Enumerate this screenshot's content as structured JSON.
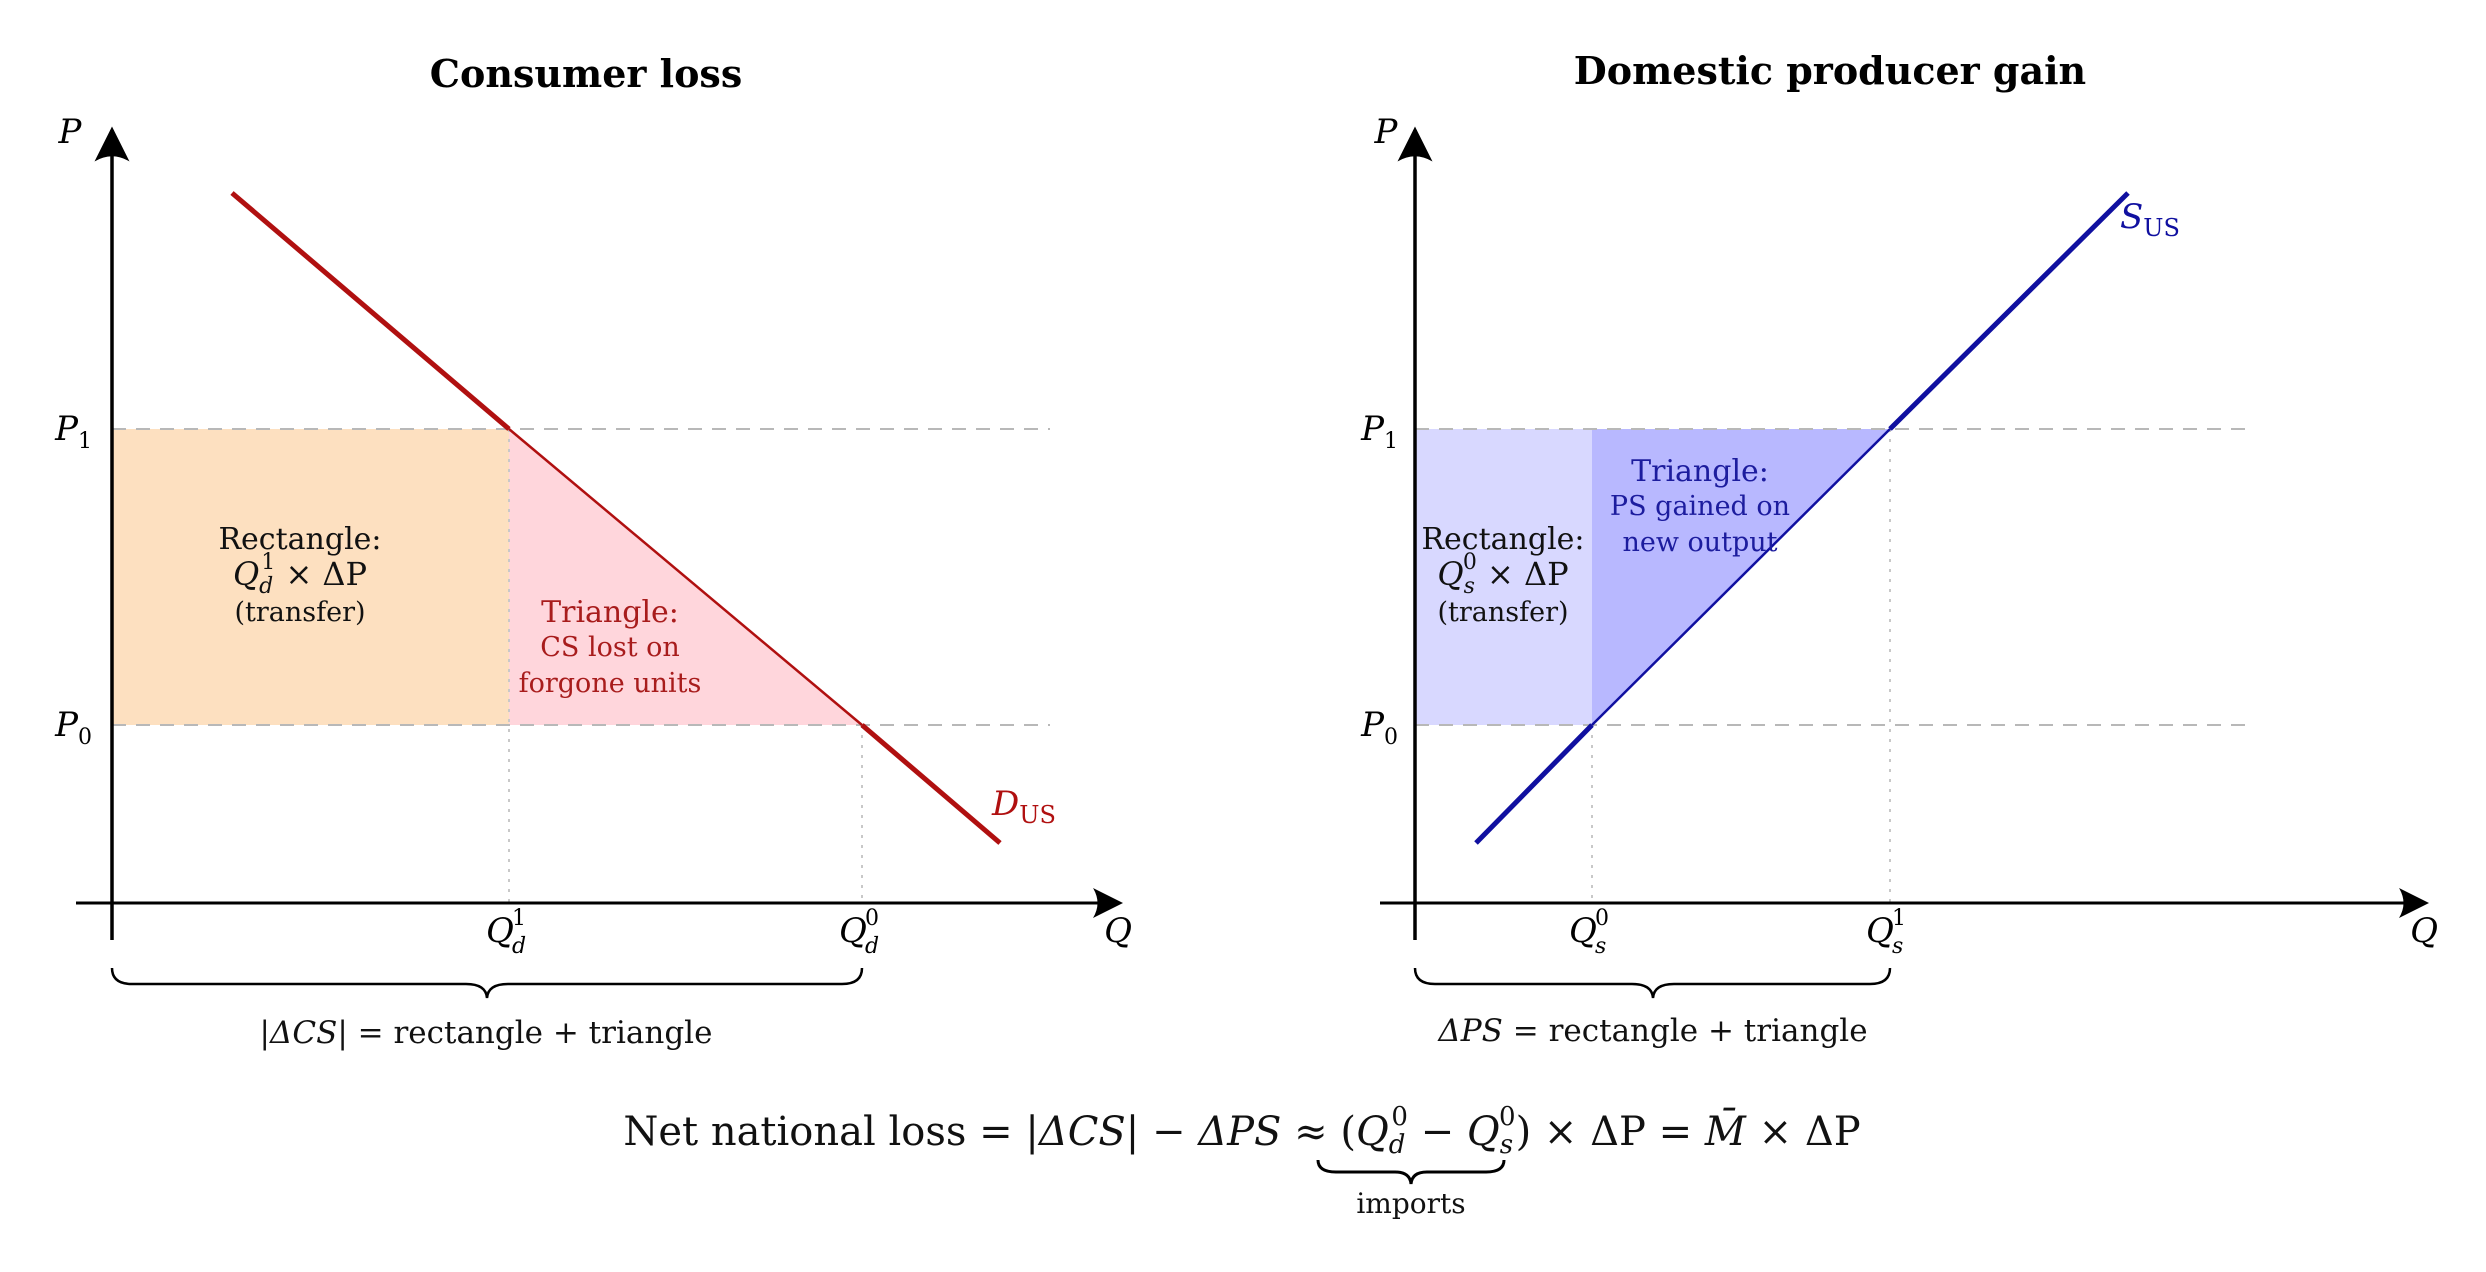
{
  "panels": {
    "left": {
      "title": "Consumer loss",
      "y_axis_label": "P",
      "x_axis_label": "Q",
      "p1_label": "P",
      "p1_sub": "1",
      "p0_label": "P",
      "p0_sub": "0",
      "q1_label": "Q",
      "q1_sub": "d",
      "q1_sup": "1",
      "q0_label": "Q",
      "q0_sub": "d",
      "q0_sup": "0",
      "curve_label": "D",
      "curve_sub": "US",
      "rect_line1": "Rectangle:",
      "rect_line2_a": "Q",
      "rect_line2_sub": "d",
      "rect_line2_sup": "1",
      "rect_line2_b": " × ΔP",
      "rect_line3": "(transfer)",
      "tri_line1": "Triangle:",
      "tri_line2": "CS lost on",
      "tri_line3": "forgone units",
      "brace_text_a": "|ΔCS|",
      "brace_text_b": " = rectangle + triangle"
    },
    "right": {
      "title": "Domestic producer gain",
      "y_axis_label": "P",
      "x_axis_label": "Q",
      "p1_label": "P",
      "p1_sub": "1",
      "p0_label": "P",
      "p0_sub": "0",
      "q0_label": "Q",
      "q0_sub": "s",
      "q0_sup": "0",
      "q1_label": "Q",
      "q1_sub": "s",
      "q1_sup": "1",
      "curve_label": "S",
      "curve_sub": "US",
      "rect_line1": "Rectangle:",
      "rect_line2_a": "Q",
      "rect_line2_sub": "s",
      "rect_line2_sup": "0",
      "rect_line2_b": " × ΔP",
      "rect_line3": "(transfer)",
      "tri_line1": "Triangle:",
      "tri_line2": "PS gained on",
      "tri_line3": "new output",
      "brace_text_a": "ΔPS",
      "brace_text_b": " = rectangle + triangle"
    }
  },
  "equation": {
    "part1": "Net national loss = ",
    "part2": "|ΔCS|",
    "part3": " − ",
    "part4": "ΔPS",
    "part5": " ≈ (",
    "qd": "Q",
    "qd_sub": "d",
    "qd_sup": "0",
    "minus": " − ",
    "qs": "Q",
    "qs_sub": "s",
    "qs_sup": "0",
    "part6": ")",
    "part7": " × ΔP = ",
    "mbar": "M̄",
    "part8": " × ΔP",
    "brace_label": "imports"
  },
  "colors": {
    "demand": "#b01010",
    "supply": "#1010a0",
    "rect_orange": "#fde0c0",
    "tri_pink": "#ffd6dc",
    "rect_lavender": "#d8d8ff",
    "tri_blue": "#b8b8ff",
    "dashed": "#b8b8b8"
  }
}
